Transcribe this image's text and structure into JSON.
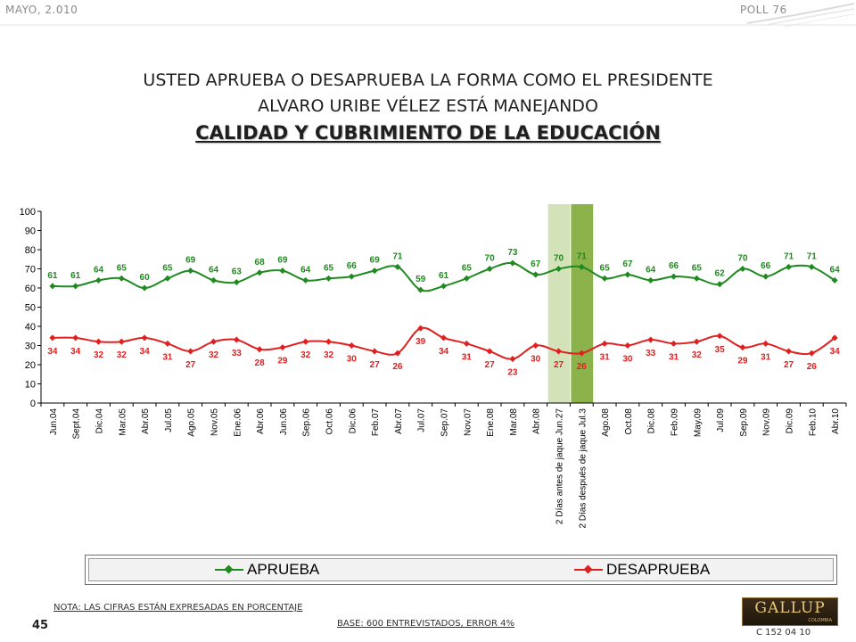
{
  "header": {
    "date": "MAYO, 2.010",
    "poll": "POLL 76"
  },
  "title": {
    "line1": "USTED APRUEBA O DESAPRUEBA LA FORMA COMO EL PRESIDENTE",
    "line2": "ALVARO URIBE VÉLEZ ESTÁ MANEJANDO",
    "line3": "CALIDAD Y CUBRIMIENTO DE LA EDUCACIÓN"
  },
  "colors": {
    "approve": "#1f8a1f",
    "disapprove": "#e02020",
    "highlight_light": "#d3e2b8",
    "highlight_dark": "#8cb24c"
  },
  "chart_data": {
    "type": "line",
    "categories": [
      "Jun.04",
      "Sept.04",
      "Dic.04",
      "Mar.05",
      "Abr.05",
      "Jul.05",
      "Ago.05",
      "Nov.05",
      "Ene.06",
      "Abr.06",
      "Jun.06",
      "Sep.06",
      "Oct.06",
      "Dic.06",
      "Feb.07",
      "Abr.07",
      "Jul.07",
      "Sep.07",
      "Nov.07",
      "Ene.08",
      "Mar.08",
      "Abr.08",
      "2 Días antes de jaque Jun.27",
      "2 Días después de jaque Jul.3",
      "Ago.08",
      "Oct.08",
      "Dic.08",
      "Feb.09",
      "May.09",
      "Jul.09",
      "Sep.09",
      "Nov.09",
      "Dic.09",
      "Feb.10",
      "Abr.10"
    ],
    "series": [
      {
        "name": "APRUEBA",
        "values": [
          61,
          61,
          64,
          65,
          60,
          65,
          69,
          64,
          63,
          68,
          69,
          64,
          65,
          66,
          69,
          71,
          59,
          61,
          65,
          70,
          73,
          67,
          70,
          71,
          65,
          67,
          64,
          66,
          65,
          62,
          70,
          66,
          71,
          71,
          64
        ]
      },
      {
        "name": "DESAPRUEBA",
        "values": [
          34,
          34,
          32,
          32,
          34,
          31,
          27,
          32,
          33,
          28,
          29,
          32,
          32,
          30,
          27,
          26,
          39,
          34,
          31,
          27,
          23,
          30,
          27,
          26,
          31,
          30,
          33,
          31,
          32,
          35,
          29,
          31,
          27,
          26,
          34
        ]
      }
    ],
    "yticks": [
      0,
      10,
      20,
      30,
      40,
      50,
      60,
      70,
      80,
      90,
      100
    ],
    "ylim": [
      0,
      100
    ],
    "highlighted_categories": [
      "2 Días antes de jaque Jun.27",
      "2 Días después de jaque Jul.3"
    ],
    "legend_position": "bottom",
    "grid": false
  },
  "legend": {
    "approve_label": "APRUEBA",
    "disapprove_label": "DESAPRUEBA"
  },
  "footer": {
    "note": "NOTA: LAS CIFRAS ESTÁN EXPRESADAS EN PORCENTAJE",
    "base": "BASE: 600 ENTREVISTADOS, ERROR 4%",
    "page_number": "45",
    "logo_text": "GALLUP",
    "logo_subtext": "COLOMBIA",
    "code": "C 152 04 10"
  }
}
